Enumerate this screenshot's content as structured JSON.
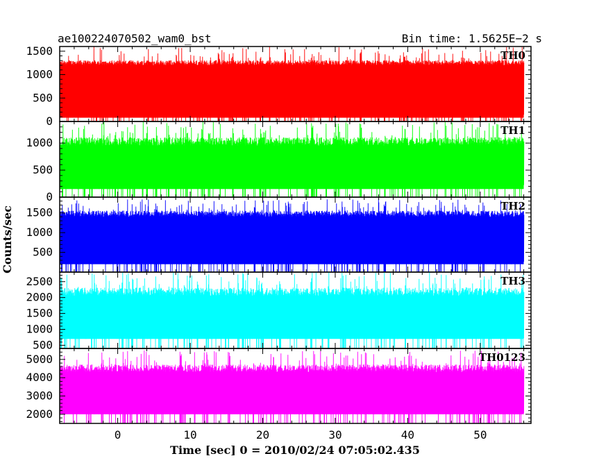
{
  "header": {
    "title": "ae100224070502_wam0_bst",
    "bin_time": "Bin time: 1.5625E−2 s"
  },
  "chart_data": {
    "type": "line",
    "xlabel": "Time [sec] 0 = 2010/02/24 07:05:02.435",
    "ylabel": "Counts/sec",
    "xlim": [
      -8,
      57
    ],
    "data_x_range": [
      -8,
      56
    ],
    "x_ticks": [
      0,
      10,
      20,
      30,
      40,
      50
    ],
    "x_tick_labels": [
      "0",
      "10",
      "20",
      "30",
      "40",
      "50"
    ],
    "panels": [
      {
        "name": "TH0",
        "color": "#ff0000",
        "ylim": [
          0,
          1600
        ],
        "y_ticks": [
          0,
          500,
          1000,
          1500
        ],
        "y_tick_labels": [
          "0",
          "500",
          "1000",
          "1500"
        ],
        "lower_envelope": [
          0,
          100
        ],
        "core_band": [
          80,
          1200
        ],
        "upper_envelope": [
          1150,
          1600
        ]
      },
      {
        "name": "TH1",
        "color": "#00ff00",
        "ylim": [
          0,
          1400
        ],
        "y_ticks": [
          0,
          500,
          1000
        ],
        "y_tick_labels": [
          "0",
          "500",
          "1000"
        ],
        "lower_envelope": [
          0,
          150
        ],
        "core_band": [
          150,
          950
        ],
        "upper_envelope": [
          950,
          1400
        ]
      },
      {
        "name": "TH2",
        "color": "#0000ff",
        "ylim": [
          0,
          1900
        ],
        "y_ticks": [
          500,
          1000,
          1500
        ],
        "y_tick_labels": [
          "500",
          "1000",
          "1500"
        ],
        "lower_envelope": [
          0,
          200
        ],
        "core_band": [
          200,
          1400
        ],
        "upper_envelope": [
          1400,
          1850
        ]
      },
      {
        "name": "TH3",
        "color": "#00ffff",
        "ylim": [
          400,
          2800
        ],
        "y_ticks": [
          500,
          1000,
          1500,
          2000,
          2500
        ],
        "y_tick_labels": [
          "500",
          "1000",
          "1500",
          "2000",
          "2500"
        ],
        "lower_envelope": [
          400,
          700
        ],
        "core_band": [
          700,
          2050
        ],
        "upper_envelope": [
          2050,
          2800
        ]
      },
      {
        "name": "TH0123",
        "color": "#ff00ff",
        "ylim": [
          1500,
          5600
        ],
        "y_ticks": [
          2000,
          3000,
          4000,
          5000
        ],
        "y_tick_labels": [
          "2000",
          "3000",
          "4000",
          "5000"
        ],
        "lower_envelope": [
          1500,
          2000
        ],
        "core_band": [
          2000,
          4300
        ],
        "upper_envelope": [
          4300,
          5500
        ]
      }
    ]
  }
}
